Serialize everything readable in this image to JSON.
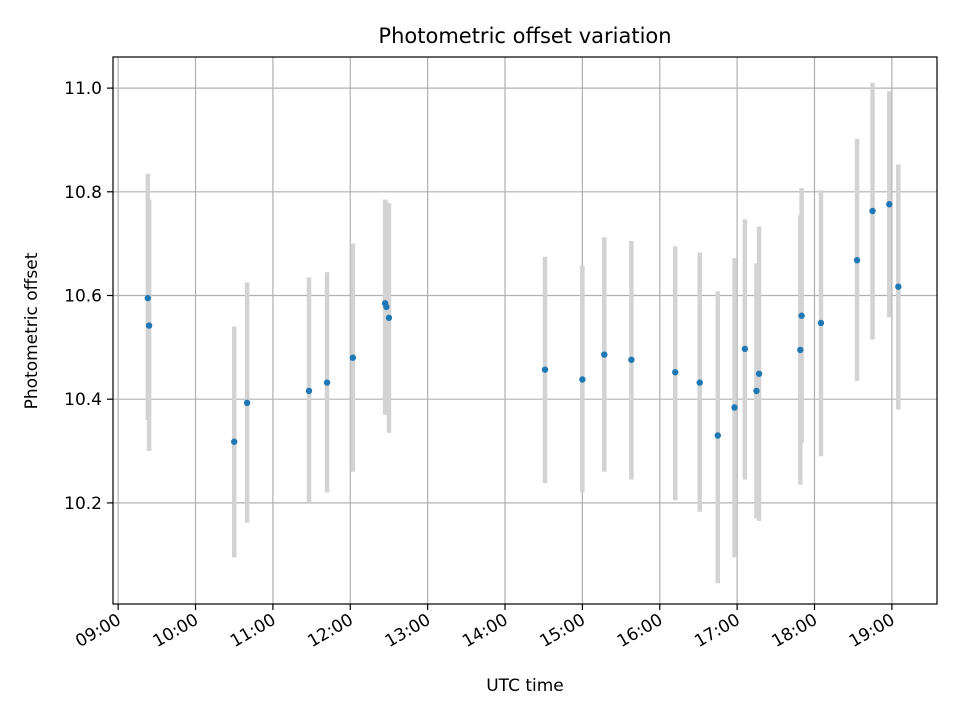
{
  "chart_data": {
    "type": "scatter",
    "title": "Photometric offset variation",
    "xlabel": "UTC time",
    "ylabel": "Photometric offset",
    "x_tick_labels": [
      "09:00",
      "10:00",
      "11:00",
      "12:00",
      "13:00",
      "14:00",
      "15:00",
      "16:00",
      "17:00",
      "18:00",
      "19:00"
    ],
    "y_tick_labels": [
      "10.2",
      "10.4",
      "10.6",
      "10.8",
      "11.0"
    ],
    "y_ticks": [
      10.2,
      10.4,
      10.6,
      10.8,
      11.0
    ],
    "xlim": [
      "08:56",
      "19:35"
    ],
    "ylim": [
      10.005,
      11.06
    ],
    "grid": true,
    "marker_color": "#1f77b4",
    "errorbar_color": "#d3d3d3",
    "series": [
      {
        "points": [
          {
            "x": "09:23",
            "y": 10.595,
            "ylow": 10.36,
            "yhigh": 10.835
          },
          {
            "x": "09:24",
            "y": 10.542,
            "ylow": 10.3,
            "yhigh": 10.785
          },
          {
            "x": "10:30",
            "y": 10.318,
            "ylow": 10.095,
            "yhigh": 10.54
          },
          {
            "x": "10:40",
            "y": 10.393,
            "ylow": 10.162,
            "yhigh": 10.625
          },
          {
            "x": "11:28",
            "y": 10.416,
            "ylow": 10.2,
            "yhigh": 10.635
          },
          {
            "x": "11:42",
            "y": 10.432,
            "ylow": 10.22,
            "yhigh": 10.645
          },
          {
            "x": "12:02",
            "y": 10.48,
            "ylow": 10.26,
            "yhigh": 10.7
          },
          {
            "x": "12:27",
            "y": 10.585,
            "ylow": 10.37,
            "yhigh": 10.785
          },
          {
            "x": "12:28",
            "y": 10.578,
            "ylow": 10.38,
            "yhigh": 10.78
          },
          {
            "x": "12:30",
            "y": 10.557,
            "ylow": 10.335,
            "yhigh": 10.778
          },
          {
            "x": "14:31",
            "y": 10.457,
            "ylow": 10.238,
            "yhigh": 10.675
          },
          {
            "x": "15:00",
            "y": 10.438,
            "ylow": 10.22,
            "yhigh": 10.658
          },
          {
            "x": "15:17",
            "y": 10.486,
            "ylow": 10.26,
            "yhigh": 10.712
          },
          {
            "x": "15:38",
            "y": 10.476,
            "ylow": 10.245,
            "yhigh": 10.705
          },
          {
            "x": "16:12",
            "y": 10.452,
            "ylow": 10.205,
            "yhigh": 10.695
          },
          {
            "x": "16:31",
            "y": 10.432,
            "ylow": 10.183,
            "yhigh": 10.683
          },
          {
            "x": "16:45",
            "y": 10.33,
            "ylow": 10.045,
            "yhigh": 10.608
          },
          {
            "x": "16:58",
            "y": 10.384,
            "ylow": 10.095,
            "yhigh": 10.672
          },
          {
            "x": "17:06",
            "y": 10.497,
            "ylow": 10.245,
            "yhigh": 10.747
          },
          {
            "x": "17:15",
            "y": 10.416,
            "ylow": 10.17,
            "yhigh": 10.662
          },
          {
            "x": "17:17",
            "y": 10.449,
            "ylow": 10.165,
            "yhigh": 10.733
          },
          {
            "x": "17:49",
            "y": 10.495,
            "ylow": 10.235,
            "yhigh": 10.755
          },
          {
            "x": "17:50",
            "y": 10.561,
            "ylow": 10.315,
            "yhigh": 10.807
          },
          {
            "x": "18:05",
            "y": 10.547,
            "ylow": 10.29,
            "yhigh": 10.803
          },
          {
            "x": "18:33",
            "y": 10.668,
            "ylow": 10.435,
            "yhigh": 10.902
          },
          {
            "x": "18:45",
            "y": 10.763,
            "ylow": 10.515,
            "yhigh": 11.01
          },
          {
            "x": "18:58",
            "y": 10.776,
            "ylow": 10.558,
            "yhigh": 10.994
          },
          {
            "x": "19:05",
            "y": 10.617,
            "ylow": 10.38,
            "yhigh": 10.853
          }
        ]
      }
    ]
  }
}
